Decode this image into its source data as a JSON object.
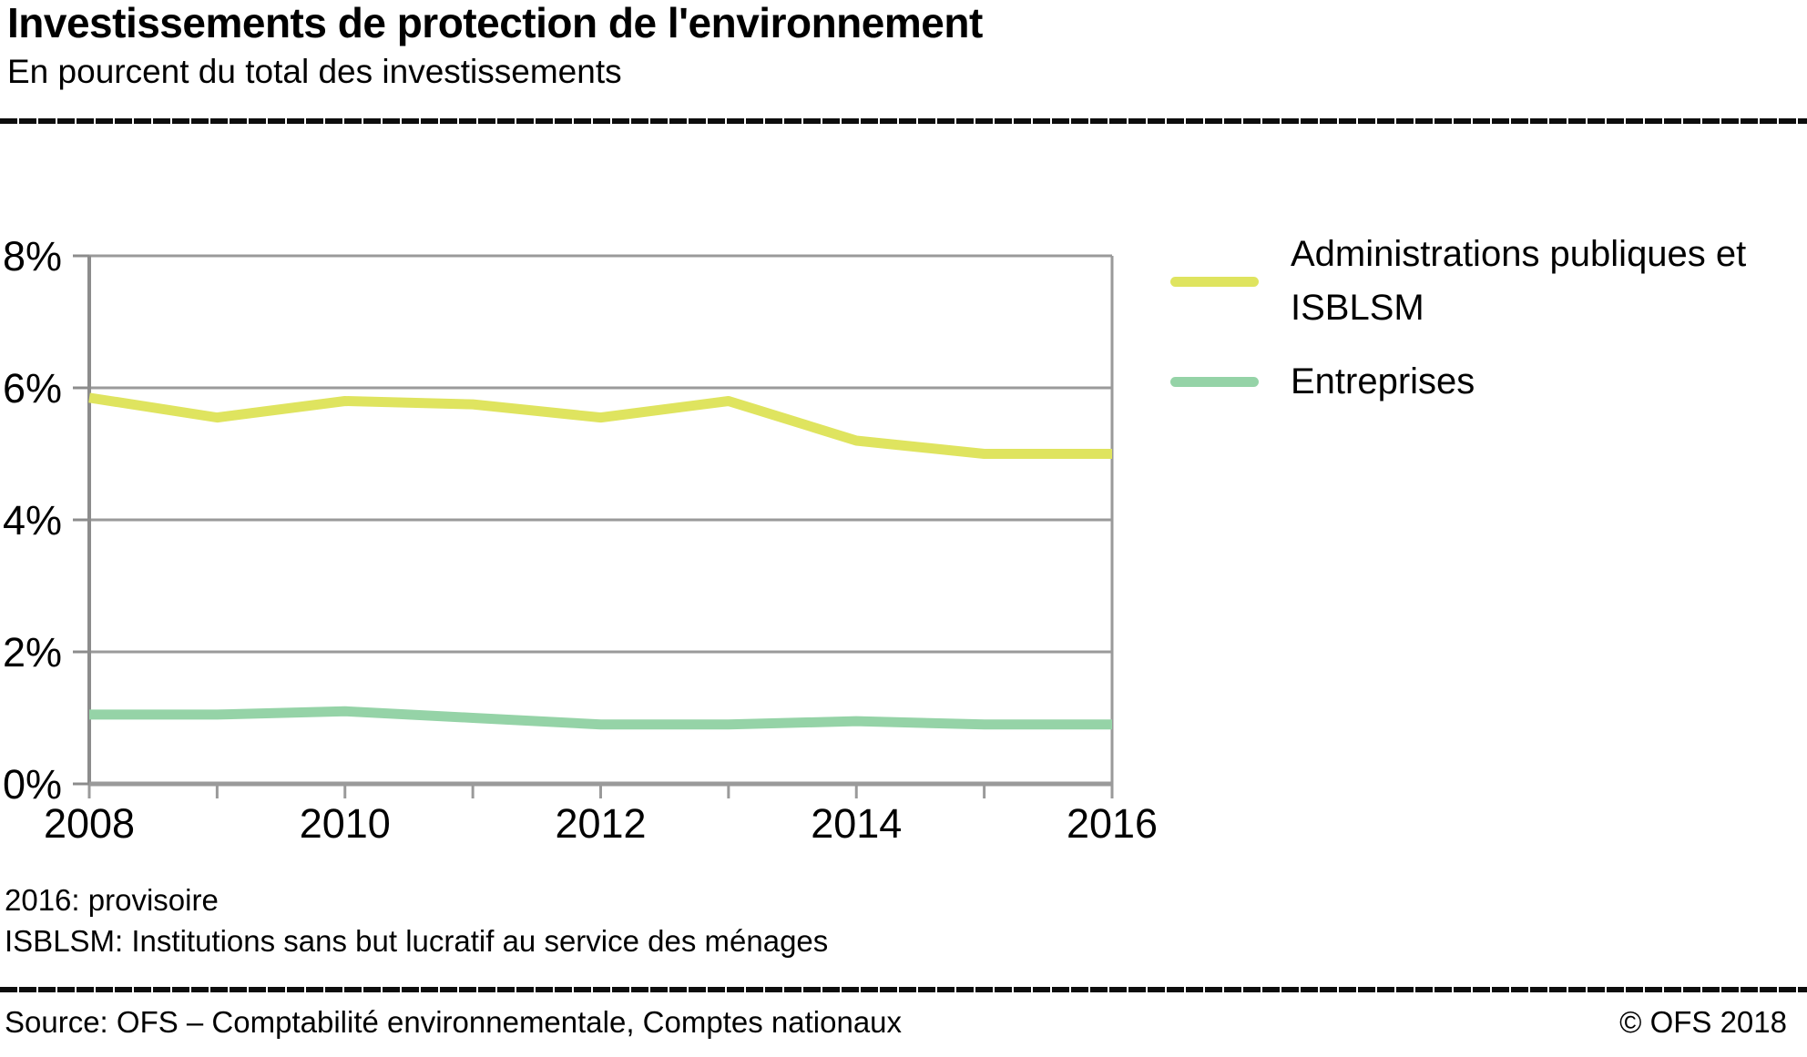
{
  "header": {
    "title": "Investissements de protection de l'environnement",
    "subtitle": "En pourcent du total des investissements"
  },
  "chart_data": {
    "type": "line",
    "title": "Investissements de protection de l'environnement",
    "subtitle": "En pourcent du total des investissements",
    "x": [
      2008,
      2009,
      2010,
      2011,
      2012,
      2013,
      2014,
      2015,
      2016
    ],
    "series": [
      {
        "name": "Administrations publiques et ISBLSM",
        "color": "#dfe45f",
        "values": [
          5.85,
          5.55,
          5.8,
          5.75,
          5.55,
          5.8,
          5.2,
          5.0,
          5.0
        ]
      },
      {
        "name": "Entreprises",
        "color": "#95d3a7",
        "values": [
          1.05,
          1.05,
          1.1,
          1.0,
          0.9,
          0.9,
          0.95,
          0.9,
          0.9
        ]
      }
    ],
    "ylim": [
      0,
      8
    ],
    "y_ticks": [
      0,
      2,
      4,
      6,
      8
    ],
    "y_tick_labels": [
      "0%",
      "2%",
      "4%",
      "6%",
      "8%"
    ],
    "x_tick_labels": [
      {
        "year": 2008,
        "text": "2008"
      },
      {
        "year": 2010,
        "text": "2010"
      },
      {
        "year": 2012,
        "text": "2012"
      },
      {
        "year": 2014,
        "text": "2014"
      },
      {
        "year": 2016,
        "text": "2016"
      }
    ],
    "grid": "horizontal",
    "legend_position": "right",
    "colors": {
      "grid": "#9a9a9a",
      "axis": "#8c8c8c",
      "text": "#000000"
    }
  },
  "footnotes": [
    "2016: provisoire",
    "ISBLSM: Institutions sans but lucratif au service des ménages"
  ],
  "footer": {
    "source": "Source: OFS – Comptabilité environnementale, Comptes nationaux",
    "copyright": "© OFS 2018"
  }
}
